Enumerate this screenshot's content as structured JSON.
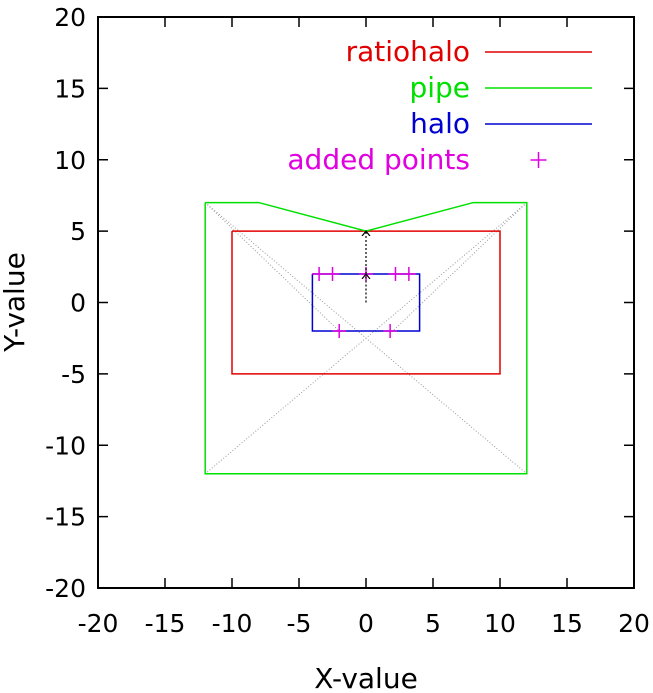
{
  "chart_data": {
    "type": "line",
    "title": "",
    "xlabel": "X-value",
    "ylabel": "Y-value",
    "xlim": [
      -20,
      20
    ],
    "ylim": [
      -20,
      20
    ],
    "xticks": [
      "-20",
      "-15",
      "-10",
      "-5",
      "0",
      "5",
      "10",
      "15",
      "20"
    ],
    "yticks": [
      "20",
      "15",
      "10",
      "5",
      "0",
      "-5",
      "-10",
      "-15",
      "-20"
    ],
    "xtick_values": [
      -20,
      -15,
      -10,
      -5,
      0,
      5,
      10,
      15,
      20
    ],
    "ytick_values": [
      20,
      15,
      10,
      5,
      0,
      -5,
      -10,
      -15,
      -20
    ],
    "grid": false,
    "legend_position": "top-right",
    "series": [
      {
        "name": "ratiohalo",
        "color": "#e00000",
        "style": "line",
        "points": [
          [
            -10,
            5
          ],
          [
            10,
            5
          ],
          [
            10,
            -5
          ],
          [
            -10,
            -5
          ],
          [
            -10,
            5
          ]
        ]
      },
      {
        "name": "pipe",
        "color": "#00e000",
        "style": "line",
        "points": [
          [
            -12,
            7
          ],
          [
            -8,
            7
          ],
          [
            0,
            5
          ],
          [
            8,
            7
          ],
          [
            12,
            7
          ],
          [
            12,
            -12
          ],
          [
            -12,
            -12
          ],
          [
            -12,
            7
          ]
        ]
      },
      {
        "name": "halo",
        "color": "#0000d0",
        "style": "line",
        "points": [
          [
            -4,
            2
          ],
          [
            4,
            2
          ],
          [
            4,
            -2
          ],
          [
            -4,
            -2
          ],
          [
            -4,
            2
          ]
        ]
      },
      {
        "name": "added points",
        "color": "#e000e0",
        "style": "points",
        "points": [
          [
            -3.5,
            2
          ],
          [
            -2.5,
            2
          ],
          [
            0,
            2
          ],
          [
            2.2,
            2
          ],
          [
            3.2,
            2
          ],
          [
            -2,
            -2
          ],
          [
            1.8,
            -2
          ]
        ]
      }
    ],
    "construction_lines": {
      "color": "#999999",
      "segments": [
        [
          [
            -12,
            7
          ],
          [
            12,
            -12
          ]
        ],
        [
          [
            12,
            7
          ],
          [
            -12,
            -12
          ]
        ],
        [
          [
            -8,
            7
          ],
          [
            0,
            5
          ]
        ],
        [
          [
            8,
            7
          ],
          [
            0,
            5
          ]
        ],
        [
          [
            -12,
            7
          ],
          [
            -2,
            -2
          ]
        ],
        [
          [
            12,
            7
          ],
          [
            2,
            -2
          ]
        ]
      ]
    },
    "arrows": {
      "color": "#000000",
      "segments": [
        [
          [
            0,
            0
          ],
          [
            0,
            2
          ]
        ],
        [
          [
            0,
            2
          ],
          [
            0,
            5
          ]
        ]
      ]
    }
  }
}
